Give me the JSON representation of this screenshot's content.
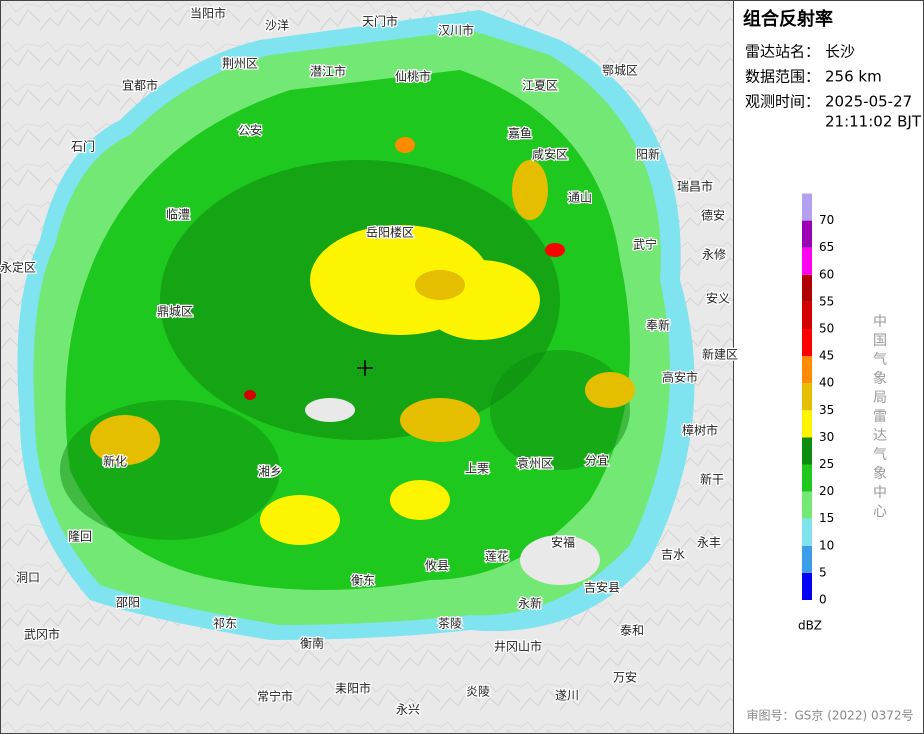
{
  "panel": {
    "title": "组合反射率",
    "station_label": "雷达站名：",
    "station": "长沙",
    "range_label": "数据范围：",
    "range": "256 km",
    "time_label": "观测时间：",
    "date": "2025-05-27",
    "time": "21:11:02 BJT"
  },
  "legend": {
    "unit": "dBZ",
    "items": [
      {
        "value": 0,
        "color": "#0000f6"
      },
      {
        "value": 5,
        "color": "#3c9de8"
      },
      {
        "value": 10,
        "color": "#7fe3f0"
      },
      {
        "value": 15,
        "color": "#74e874"
      },
      {
        "value": 20,
        "color": "#1ec81e"
      },
      {
        "value": 25,
        "color": "#0e8c0e"
      },
      {
        "value": 30,
        "color": "#fcf400"
      },
      {
        "value": 35,
        "color": "#e6be00"
      },
      {
        "value": 40,
        "color": "#ff8c00"
      },
      {
        "value": 45,
        "color": "#ff0000"
      },
      {
        "value": 50,
        "color": "#d40000"
      },
      {
        "value": 55,
        "color": "#b00000"
      },
      {
        "value": 60,
        "color": "#ff00f0"
      },
      {
        "value": 65,
        "color": "#9a00b4"
      },
      {
        "value": 70,
        "color": "#b4a0f0"
      }
    ]
  },
  "watermark": "中国气象局雷达气象中心",
  "approval": "审图号：GS京 (2022) 0372号",
  "places": [
    "当阳市",
    "沙洋",
    "天门市",
    "汉川市",
    "宜都市",
    "荆州区",
    "潜江市",
    "仙桃市",
    "江夏区",
    "鄂城区",
    "公安",
    "石门",
    "嘉鱼",
    "咸安区",
    "通山",
    "阳新",
    "瑞昌市",
    "岳阳楼区",
    "临澧",
    "鼎城区",
    "武宁",
    "永定区",
    "新化",
    "隆回",
    "洞口",
    "邵阳",
    "武冈市",
    "祁东",
    "衡南",
    "常宁市",
    "耒阳市",
    "永兴",
    "茶陵",
    "炎陵",
    "井冈山市",
    "遂川",
    "万安",
    "泰和",
    "吉安县",
    "吉水",
    "永丰",
    "新干",
    "樟树市",
    "分宜",
    "袁州区",
    "上栗",
    "安福",
    "莲花",
    "永新",
    "攸县",
    "衡东",
    "湘乡",
    "奉新",
    "高安市",
    "新建区",
    "安义",
    "永修",
    "德安"
  ]
}
